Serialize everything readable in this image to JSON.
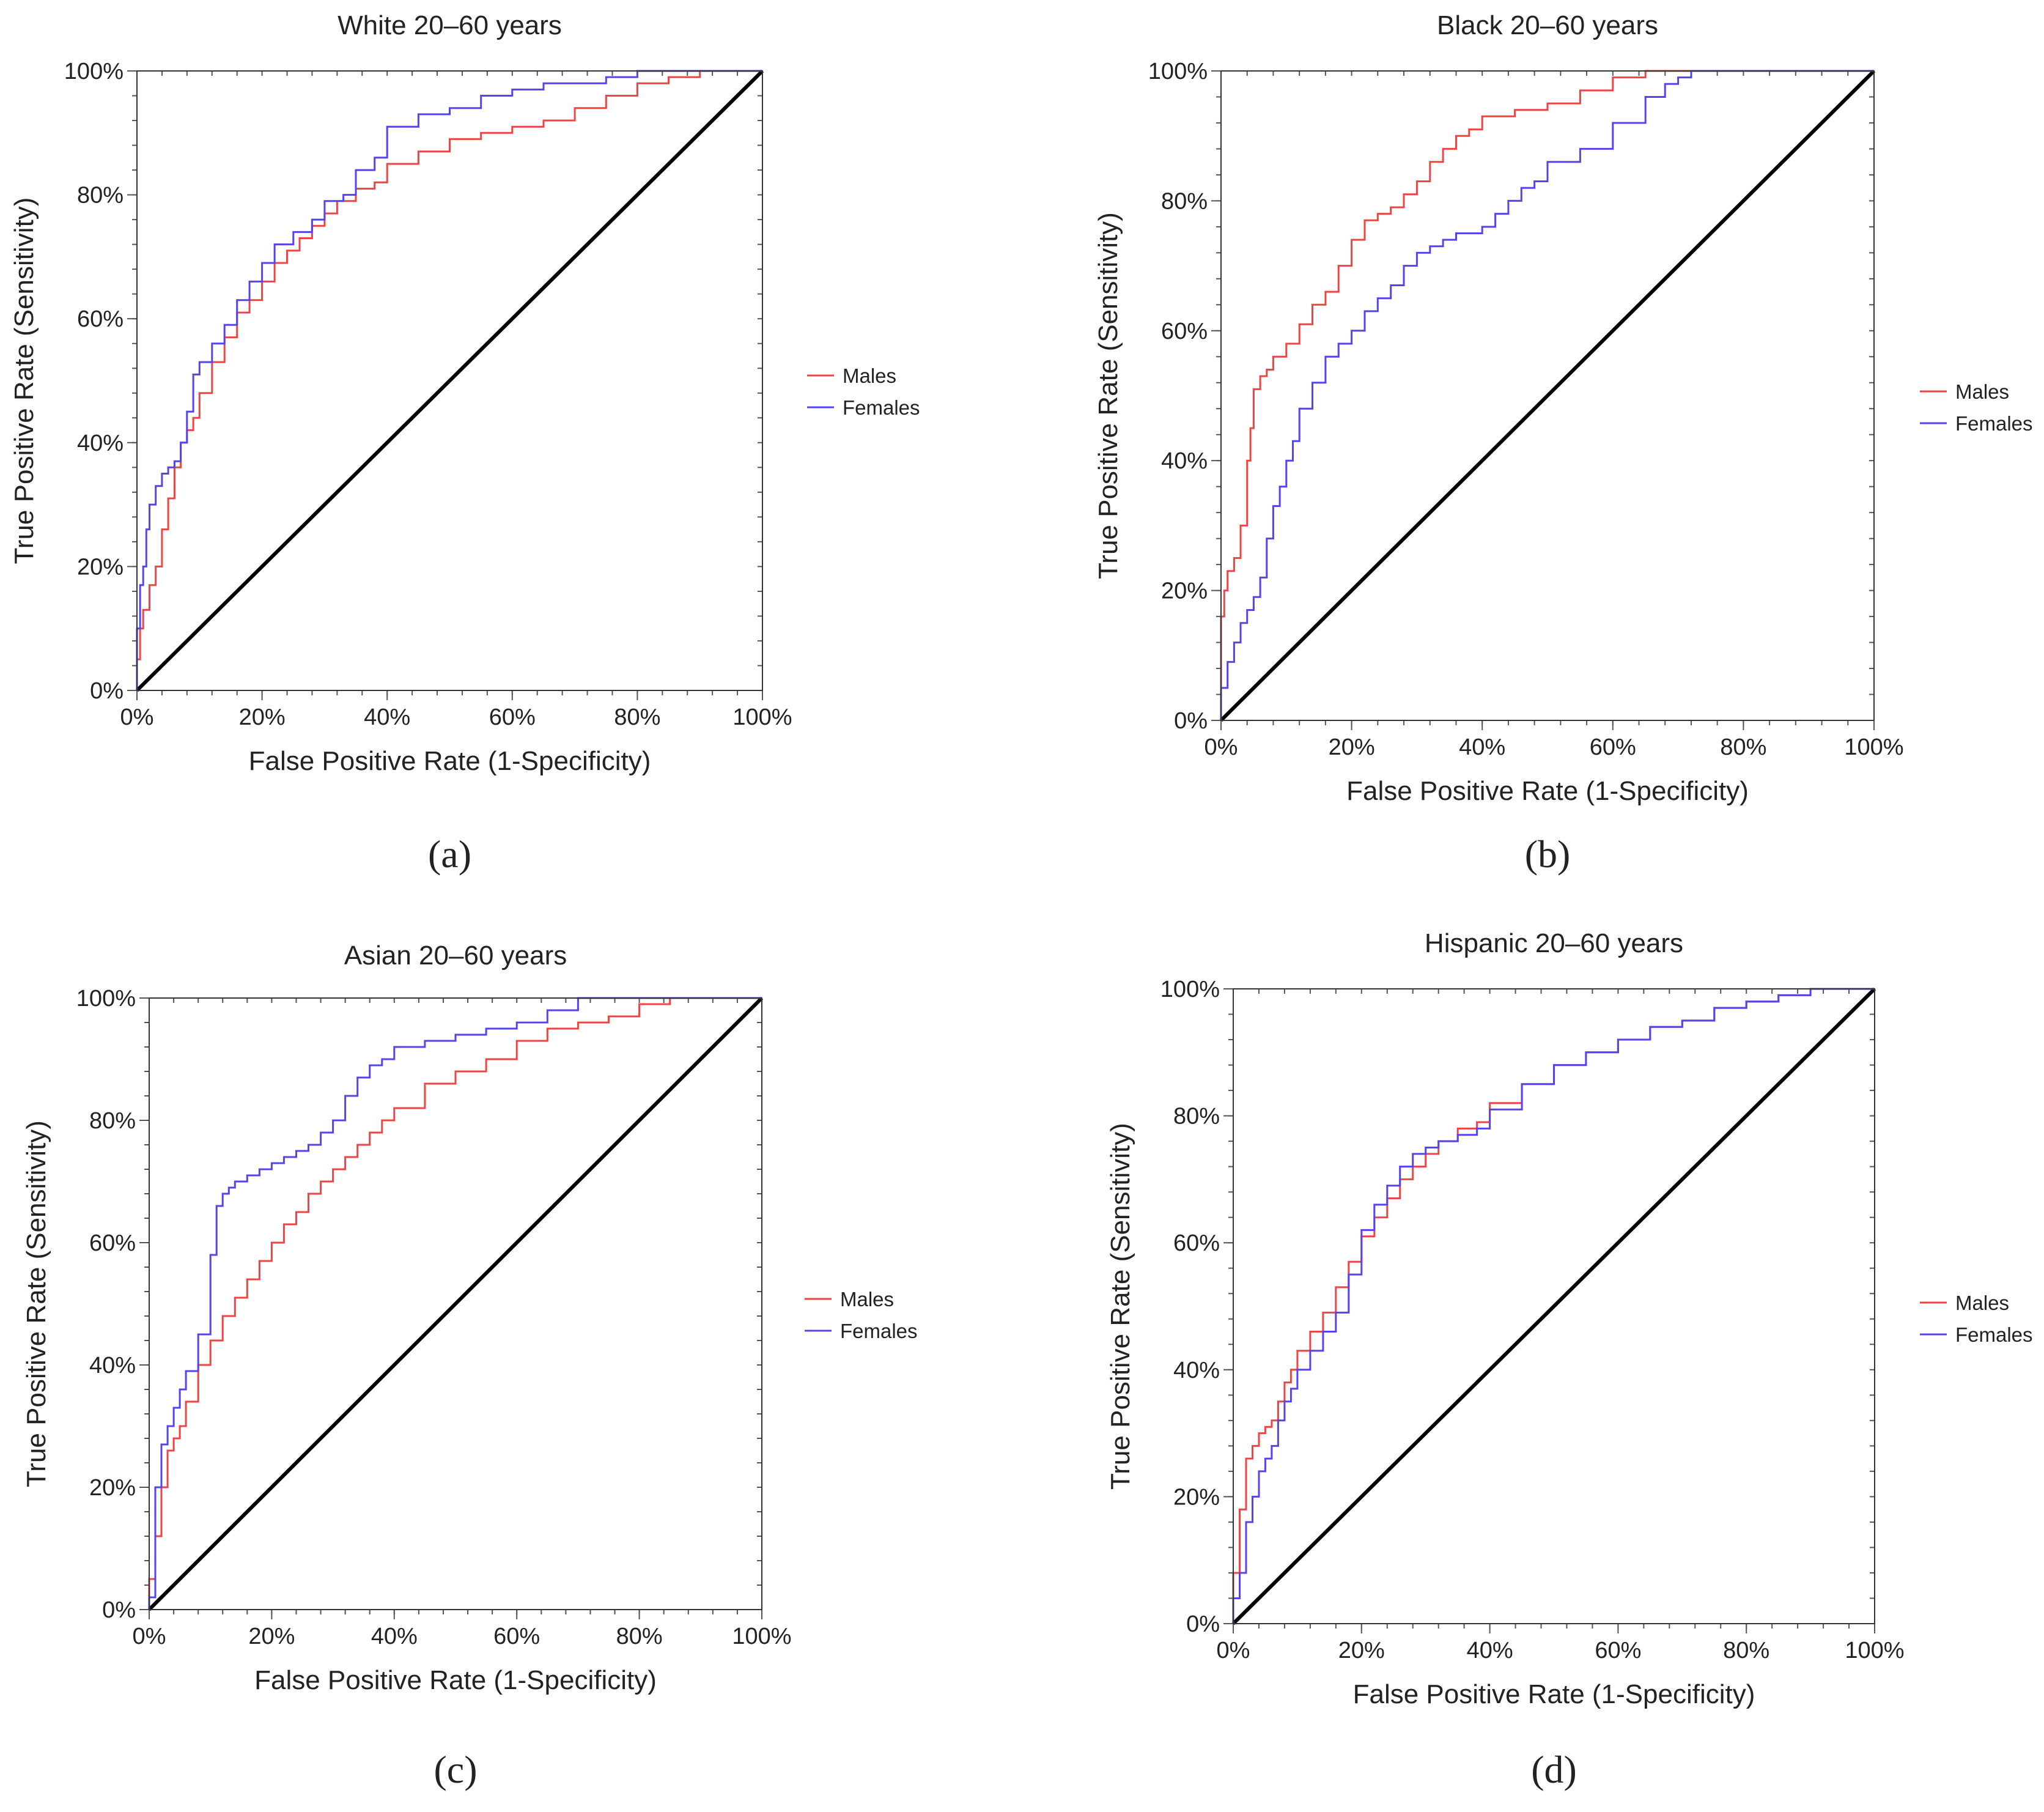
{
  "chart_data": [
    {
      "type": "line",
      "panel_label": "(a)",
      "title": "White 20–60 years",
      "xlabel": "False Positive Rate (1-Specificity)",
      "ylabel": "True Positive Rate (Sensitivity)",
      "xlim": [
        0,
        100
      ],
      "ylim": [
        0,
        100
      ],
      "x_ticks": [
        "0%",
        "20%",
        "40%",
        "60%",
        "80%",
        "100%"
      ],
      "y_ticks": [
        "0%",
        "20%",
        "40%",
        "60%",
        "80%",
        "100%"
      ],
      "legend": [
        "Males",
        "Females"
      ],
      "colors": {
        "Males": "#ee4444",
        "Females": "#5544ee",
        "reference": "#000000"
      },
      "series": [
        {
          "name": "Males",
          "x": [
            0,
            0.5,
            1,
            2,
            3,
            4,
            5,
            6,
            7,
            8,
            9,
            10,
            12,
            14,
            16,
            18,
            20,
            22,
            24,
            26,
            28,
            30,
            32,
            35,
            38,
            40,
            45,
            50,
            55,
            60,
            65,
            70,
            75,
            80,
            85,
            90,
            95,
            100
          ],
          "y": [
            0,
            5,
            10,
            13,
            17,
            20,
            26,
            31,
            36,
            40,
            42,
            44,
            48,
            53,
            57,
            61,
            63,
            66,
            69,
            71,
            73,
            75,
            77,
            79,
            81,
            82,
            85,
            87,
            89,
            90,
            91,
            92,
            94,
            96,
            98,
            99,
            100,
            100
          ]
        },
        {
          "name": "Females",
          "x": [
            0,
            0.5,
            1,
            1.5,
            2,
            3,
            4,
            5,
            6,
            7,
            8,
            9,
            10,
            12,
            14,
            16,
            18,
            20,
            22,
            25,
            28,
            30,
            33,
            35,
            38,
            40,
            45,
            50,
            55,
            60,
            65,
            70,
            75,
            80,
            85,
            90,
            95,
            100
          ],
          "y": [
            0,
            10,
            17,
            20,
            26,
            30,
            33,
            35,
            36,
            37,
            40,
            45,
            51,
            53,
            56,
            59,
            63,
            66,
            69,
            72,
            74,
            76,
            79,
            80,
            84,
            86,
            91,
            93,
            94,
            96,
            97,
            98,
            98,
            99,
            100,
            100,
            100,
            100
          ]
        }
      ]
    },
    {
      "type": "line",
      "panel_label": "(b)",
      "title": "Black 20–60 years",
      "xlabel": "False Positive Rate (1-Specificity)",
      "ylabel": "True Positive Rate (Sensitivity)",
      "xlim": [
        0,
        100
      ],
      "ylim": [
        0,
        100
      ],
      "x_ticks": [
        "0%",
        "20%",
        "40%",
        "60%",
        "80%",
        "100%"
      ],
      "y_ticks": [
        "0%",
        "20%",
        "40%",
        "60%",
        "80%",
        "100%"
      ],
      "legend": [
        "Males",
        "Females"
      ],
      "colors": {
        "Males": "#ee4444",
        "Females": "#5544ee",
        "reference": "#000000"
      },
      "series": [
        {
          "name": "Males",
          "x": [
            0,
            0.5,
            1,
            2,
            3,
            4,
            4.5,
            5,
            6,
            7,
            8,
            10,
            12,
            14,
            16,
            18,
            20,
            22,
            24,
            26,
            28,
            30,
            32,
            34,
            36,
            38,
            40,
            45,
            50,
            55,
            60,
            65,
            70,
            75,
            80,
            90,
            100
          ],
          "y": [
            0,
            16,
            20,
            23,
            25,
            30,
            40,
            45,
            51,
            53,
            54,
            56,
            58,
            61,
            64,
            66,
            70,
            74,
            77,
            78,
            79,
            81,
            83,
            86,
            88,
            90,
            91,
            93,
            94,
            95,
            97,
            99,
            100,
            100,
            100,
            100,
            100
          ]
        },
        {
          "name": "Females",
          "x": [
            0,
            1,
            2,
            3,
            4,
            5,
            6,
            7,
            8,
            9,
            10,
            11,
            12,
            14,
            16,
            18,
            20,
            22,
            24,
            26,
            28,
            30,
            32,
            34,
            36,
            40,
            42,
            44,
            46,
            48,
            50,
            55,
            60,
            65,
            68,
            70,
            72,
            75,
            80,
            90,
            100
          ],
          "y": [
            0,
            5,
            9,
            12,
            15,
            17,
            19,
            22,
            28,
            33,
            36,
            40,
            43,
            48,
            52,
            56,
            58,
            60,
            63,
            65,
            67,
            70,
            72,
            73,
            74,
            75,
            76,
            78,
            80,
            82,
            83,
            86,
            88,
            92,
            96,
            98,
            99,
            100,
            100,
            100,
            100
          ]
        }
      ]
    },
    {
      "type": "line",
      "panel_label": "(c)",
      "title": "Asian 20–60 years",
      "xlabel": "False Positive Rate (1-Specificity)",
      "ylabel": "True Positive Rate (Sensitivity)",
      "xlim": [
        0,
        100
      ],
      "ylim": [
        0,
        100
      ],
      "x_ticks": [
        "0%",
        "20%",
        "40%",
        "60%",
        "80%",
        "100%"
      ],
      "y_ticks": [
        "0%",
        "20%",
        "40%",
        "60%",
        "80%",
        "100%"
      ],
      "legend": [
        "Males",
        "Females"
      ],
      "colors": {
        "Males": "#ee4444",
        "Females": "#5544ee",
        "reference": "#000000"
      },
      "series": [
        {
          "name": "Males",
          "x": [
            0,
            1,
            2,
            3,
            4,
            5,
            6,
            8,
            10,
            12,
            14,
            16,
            18,
            20,
            22,
            24,
            26,
            28,
            30,
            32,
            34,
            36,
            38,
            40,
            45,
            50,
            55,
            60,
            65,
            70,
            75,
            80,
            85,
            90,
            100
          ],
          "y": [
            0,
            5,
            12,
            20,
            26,
            28,
            30,
            34,
            40,
            44,
            48,
            51,
            54,
            57,
            60,
            63,
            65,
            68,
            70,
            72,
            74,
            76,
            78,
            80,
            82,
            86,
            88,
            90,
            93,
            95,
            96,
            97,
            99,
            100,
            100
          ]
        },
        {
          "name": "Females",
          "x": [
            0,
            1,
            2,
            3,
            4,
            5,
            6,
            8,
            10,
            11,
            12,
            13,
            14,
            16,
            18,
            20,
            22,
            24,
            26,
            28,
            30,
            32,
            34,
            36,
            38,
            40,
            45,
            50,
            55,
            60,
            65,
            70,
            72,
            75,
            80,
            90,
            100
          ],
          "y": [
            0,
            2,
            20,
            27,
            30,
            33,
            36,
            39,
            45,
            58,
            66,
            68,
            69,
            70,
            71,
            72,
            73,
            74,
            75,
            76,
            78,
            80,
            84,
            87,
            89,
            90,
            92,
            93,
            94,
            95,
            96,
            98,
            100,
            100,
            100,
            100,
            100
          ]
        }
      ]
    },
    {
      "type": "line",
      "panel_label": "(d)",
      "title": "Hispanic 20–60 years",
      "xlabel": "False Positive Rate (1-Specificity)",
      "ylabel": "True Positive Rate (Sensitivity)",
      "xlim": [
        0,
        100
      ],
      "ylim": [
        0,
        100
      ],
      "x_ticks": [
        "0%",
        "20%",
        "40%",
        "60%",
        "80%",
        "100%"
      ],
      "y_ticks": [
        "0%",
        "20%",
        "40%",
        "60%",
        "80%",
        "100%"
      ],
      "legend": [
        "Males",
        "Females"
      ],
      "colors": {
        "Males": "#ee4444",
        "Females": "#5544ee",
        "reference": "#000000"
      },
      "series": [
        {
          "name": "Males",
          "x": [
            0,
            1,
            2,
            3,
            4,
            5,
            6,
            7,
            8,
            9,
            10,
            12,
            14,
            16,
            18,
            20,
            22,
            24,
            26,
            28,
            30,
            32,
            35,
            38,
            40,
            45,
            50,
            55,
            60,
            65,
            70,
            75,
            80,
            85,
            90,
            95,
            100
          ],
          "y": [
            0,
            8,
            18,
            26,
            28,
            30,
            31,
            32,
            35,
            38,
            40,
            43,
            46,
            49,
            53,
            57,
            61,
            64,
            67,
            70,
            72,
            74,
            76,
            78,
            79,
            82,
            85,
            88,
            90,
            92,
            94,
            95,
            97,
            98,
            99,
            100,
            100
          ]
        },
        {
          "name": "Females",
          "x": [
            0,
            1,
            2,
            3,
            4,
            5,
            6,
            7,
            8,
            9,
            10,
            12,
            14,
            16,
            18,
            20,
            22,
            24,
            26,
            28,
            30,
            32,
            35,
            38,
            40,
            45,
            50,
            55,
            60,
            65,
            70,
            75,
            80,
            85,
            90,
            95,
            100
          ],
          "y": [
            0,
            4,
            8,
            16,
            20,
            24,
            26,
            28,
            32,
            35,
            37,
            40,
            43,
            46,
            49,
            55,
            62,
            66,
            69,
            72,
            74,
            75,
            76,
            77,
            78,
            81,
            85,
            88,
            90,
            92,
            94,
            95,
            97,
            98,
            99,
            100,
            100
          ]
        }
      ]
    }
  ]
}
